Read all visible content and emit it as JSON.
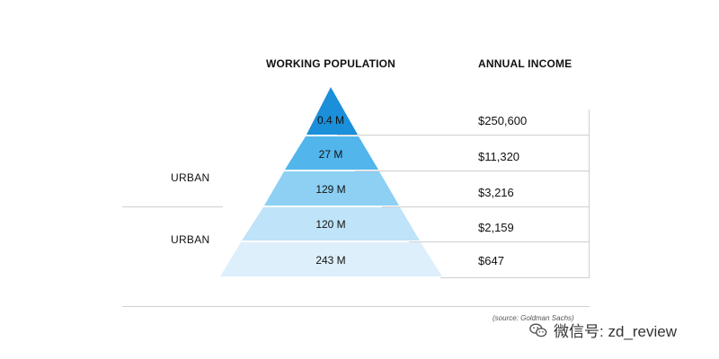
{
  "headers": {
    "left": "WORKING POPULATION",
    "right": "ANNUAL INCOME"
  },
  "side_labels": [
    "URBAN",
    "URBAN"
  ],
  "tiers": [
    {
      "population": "0.4 M",
      "income": "$250,600",
      "color": "#1b8fd9"
    },
    {
      "population": "27 M",
      "income": "$11,320",
      "color": "#52b5ec"
    },
    {
      "population": "129 M",
      "income": "$3,216",
      "color": "#8dd0f3"
    },
    {
      "population": "120 M",
      "income": "$2,159",
      "color": "#bfe3f8"
    },
    {
      "population": "243 M",
      "income": "$647",
      "color": "#ddeffb"
    }
  ],
  "source": "(source: Goldman Sachs)",
  "watermark": "微信号: zd_review"
}
